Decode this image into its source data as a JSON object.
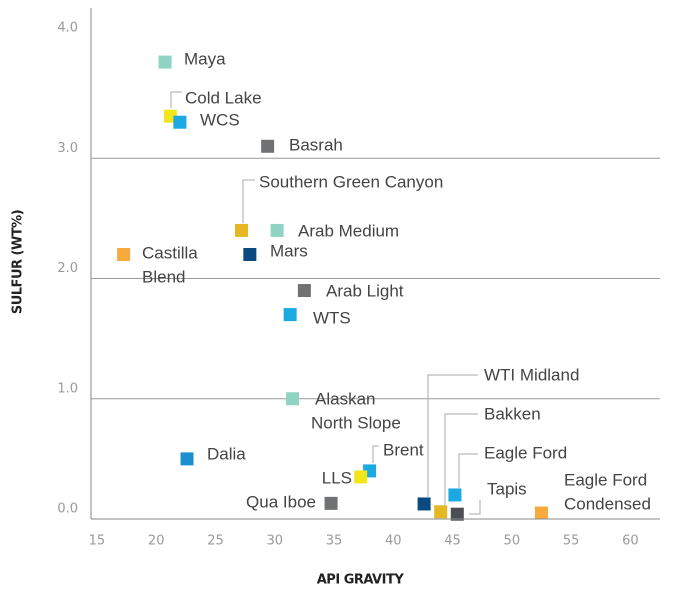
{
  "chart_data": {
    "type": "scatter",
    "x_label": "API GRAVITY",
    "y_label": "SULFUR (WT%)",
    "xlim": [
      14.5,
      62.5
    ],
    "ylim": [
      0,
      4.25
    ],
    "xticks": [
      15,
      20,
      25,
      30,
      35,
      40,
      45,
      50,
      55,
      60
    ],
    "yticks": [
      {
        "value": 0,
        "label": "0.0"
      },
      {
        "value": 1,
        "label": "1.0"
      },
      {
        "value": 2,
        "label": "2.0"
      },
      {
        "value": 3,
        "label": "3.0"
      },
      {
        "value": 4,
        "label": "4.0"
      }
    ],
    "grid": true,
    "points": [
      {
        "label": [
          "Maya"
        ],
        "x": 20.75,
        "y": 3.8,
        "color": "#8fd3c2"
      },
      {
        "label": [
          "Cold Lake"
        ],
        "x": 21.2,
        "y": 3.35,
        "color": "#f2e51a"
      },
      {
        "label": [
          "WCS"
        ],
        "x": 22.0,
        "y": 3.3,
        "color": "#1aa9e1"
      },
      {
        "label": [
          "Basrah"
        ],
        "x": 29.4,
        "y": 3.1,
        "color": "#707173"
      },
      {
        "label": [
          "Southern Green Canyon"
        ],
        "x": 27.2,
        "y": 2.4,
        "color": "#e5b722"
      },
      {
        "label": [
          "Arab Medium"
        ],
        "x": 30.2,
        "y": 2.4,
        "color": "#8fd3c2"
      },
      {
        "label": [
          "Mars"
        ],
        "x": 27.9,
        "y": 2.2,
        "color": "#0b4a80"
      },
      {
        "label": [
          "Castilla",
          "Blend"
        ],
        "x": 17.25,
        "y": 2.2,
        "color": "#f7aa3c"
      },
      {
        "label": [
          "Arab Light"
        ],
        "x": 32.5,
        "y": 1.9,
        "color": "#707173"
      },
      {
        "label": [
          "WTS"
        ],
        "x": 31.3,
        "y": 1.7,
        "color": "#1aa9e1"
      },
      {
        "label": [
          "Alaskan",
          "North Slope"
        ],
        "x": 31.5,
        "y": 1.0,
        "color": "#8fd3c2"
      },
      {
        "label": [
          "Dalia"
        ],
        "x": 22.6,
        "y": 0.5,
        "color": "#1d8ed0"
      },
      {
        "label": [
          "Brent"
        ],
        "x": 38.0,
        "y": 0.4,
        "color": "#1aa9e1"
      },
      {
        "label": [
          "LLS"
        ],
        "x": 37.25,
        "y": 0.35,
        "color": "#f2e51a"
      },
      {
        "label": [
          "Qua Iboe"
        ],
        "x": 34.75,
        "y": 0.13,
        "color": "#707173"
      },
      {
        "label": [
          "WTI Midland"
        ],
        "x": 42.6,
        "y": 0.125,
        "color": "#0b4a80"
      },
      {
        "label": [
          "Bakken"
        ],
        "x": 44.0,
        "y": 0.06,
        "color": "#e5b722"
      },
      {
        "label": [
          "Eagle Ford"
        ],
        "x": 45.2,
        "y": 0.2,
        "color": "#1aa9e1"
      },
      {
        "label": [
          "Tapis"
        ],
        "x": 45.4,
        "y": 0.04,
        "color": "#4a4f55"
      },
      {
        "label": [
          "Eagle Ford",
          "Condensed"
        ],
        "x": 52.5,
        "y": 0.05,
        "color": "#f7aa3c"
      }
    ]
  }
}
